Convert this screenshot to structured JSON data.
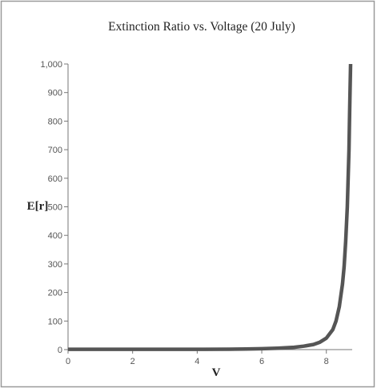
{
  "chart_data": {
    "type": "line",
    "title": "Extinction Ratio vs. Voltage (20 July)",
    "xlabel": "V",
    "ylabel": "E[r]",
    "xlim": [
      0,
      8.8
    ],
    "ylim": [
      0,
      1000
    ],
    "xticks": [
      "0",
      "2",
      "4",
      "6",
      "8"
    ],
    "yticks": [
      "0",
      "100",
      "200",
      "300",
      "400",
      "500",
      "600",
      "700",
      "800",
      "900",
      "1,000"
    ],
    "grid": false,
    "series": [
      {
        "color": "#555555",
        "x": [
          0,
          1,
          2,
          3,
          4,
          5,
          5.5,
          6,
          6.5,
          7,
          7.3,
          7.6,
          7.8,
          8.0,
          8.2,
          8.3,
          8.4,
          8.5,
          8.55,
          8.6,
          8.65,
          8.7,
          8.72,
          8.75
        ],
        "y": [
          1,
          1,
          1,
          1,
          1,
          1.5,
          2,
          3,
          5,
          8,
          12,
          18,
          26,
          40,
          70,
          100,
          150,
          230,
          290,
          380,
          500,
          700,
          830,
          1000
        ]
      }
    ]
  }
}
